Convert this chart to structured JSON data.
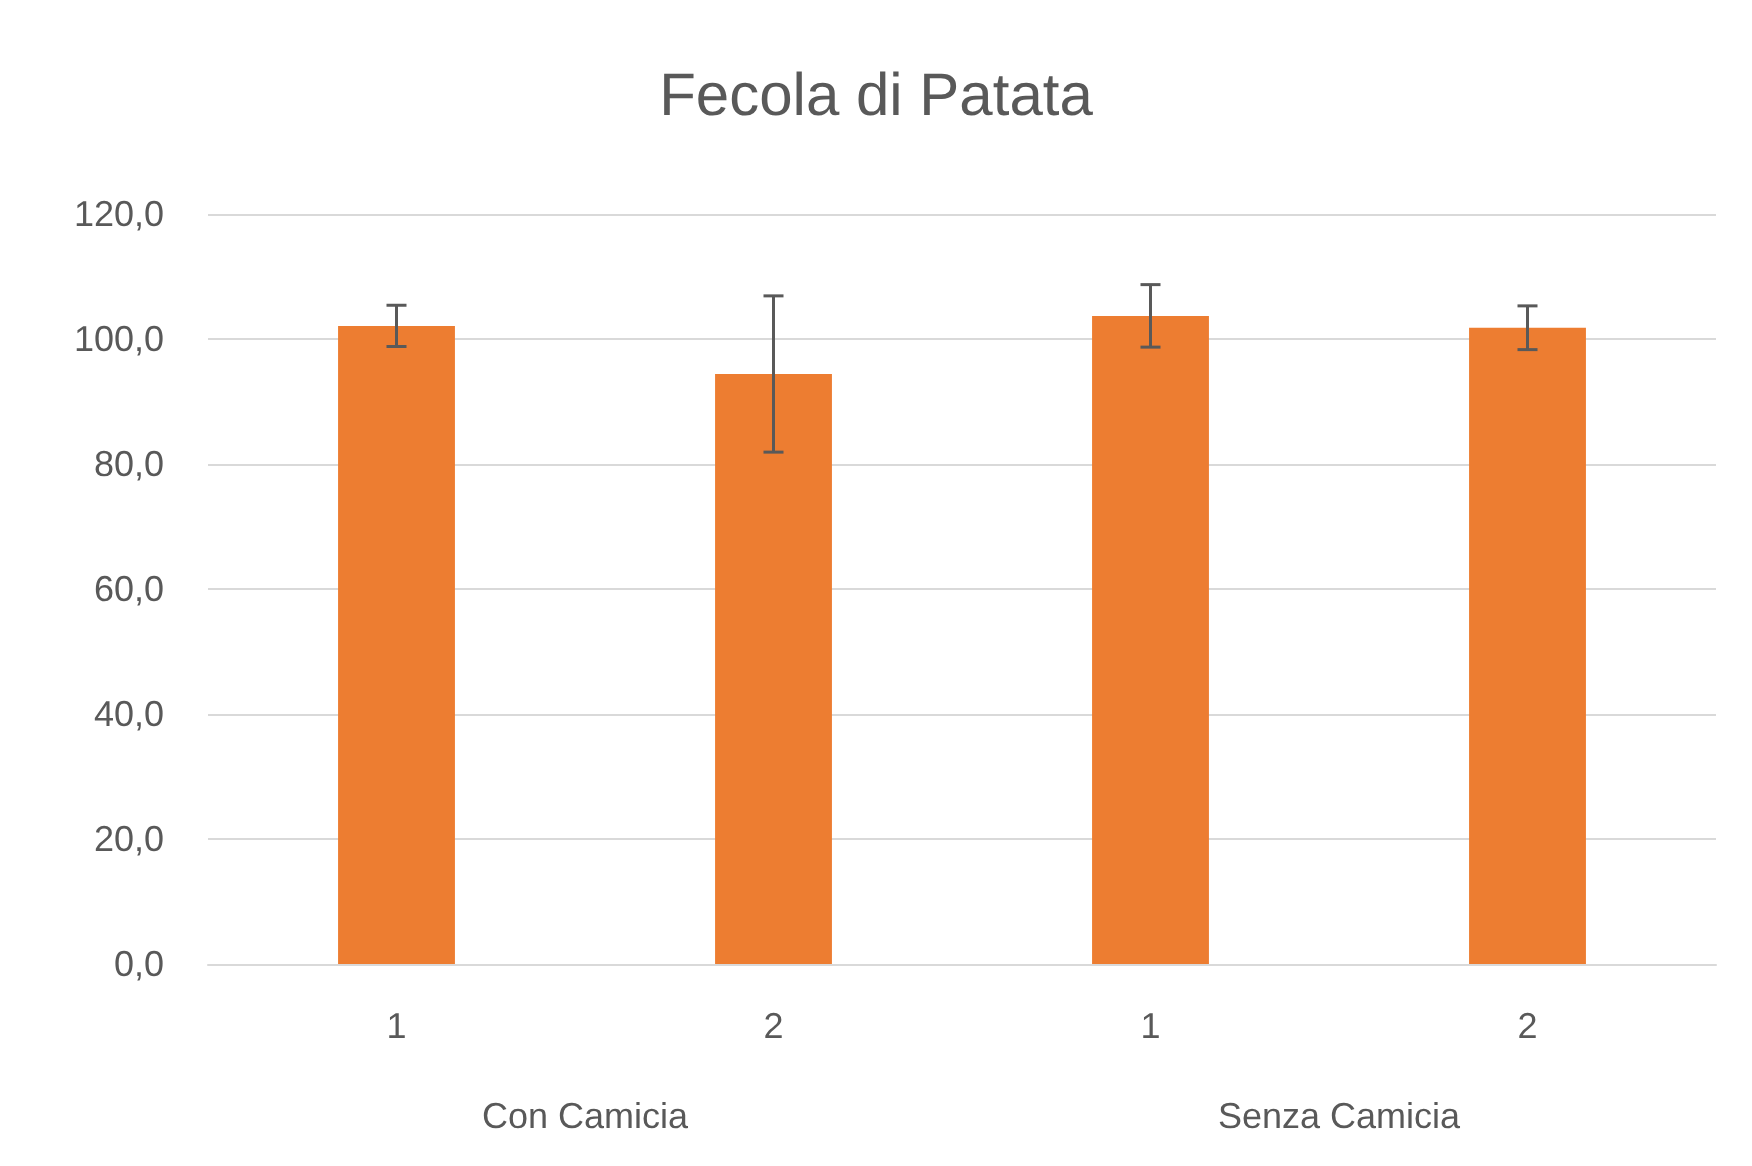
{
  "chart_data": {
    "type": "bar",
    "title": "Fecola di Patata",
    "categories": [
      "1",
      "2",
      "1",
      "2"
    ],
    "values": [
      102.1,
      94.4,
      103.7,
      101.8
    ],
    "errors": [
      3.3,
      12.5,
      5.0,
      3.5
    ],
    "color": "#ed7d31",
    "ylim": [
      0,
      120
    ],
    "yticks": [
      {
        "value": 0,
        "label": "0,0"
      },
      {
        "value": 20,
        "label": "20,0"
      },
      {
        "value": 40,
        "label": "40,0"
      },
      {
        "value": 60,
        "label": "60,0"
      },
      {
        "value": 80,
        "label": "80,0"
      },
      {
        "value": 100,
        "label": "100,0"
      },
      {
        "value": 120,
        "label": "120,0"
      }
    ],
    "grid": "y",
    "annotations": [
      "Con Camicia",
      "Senza Camicia"
    ]
  }
}
